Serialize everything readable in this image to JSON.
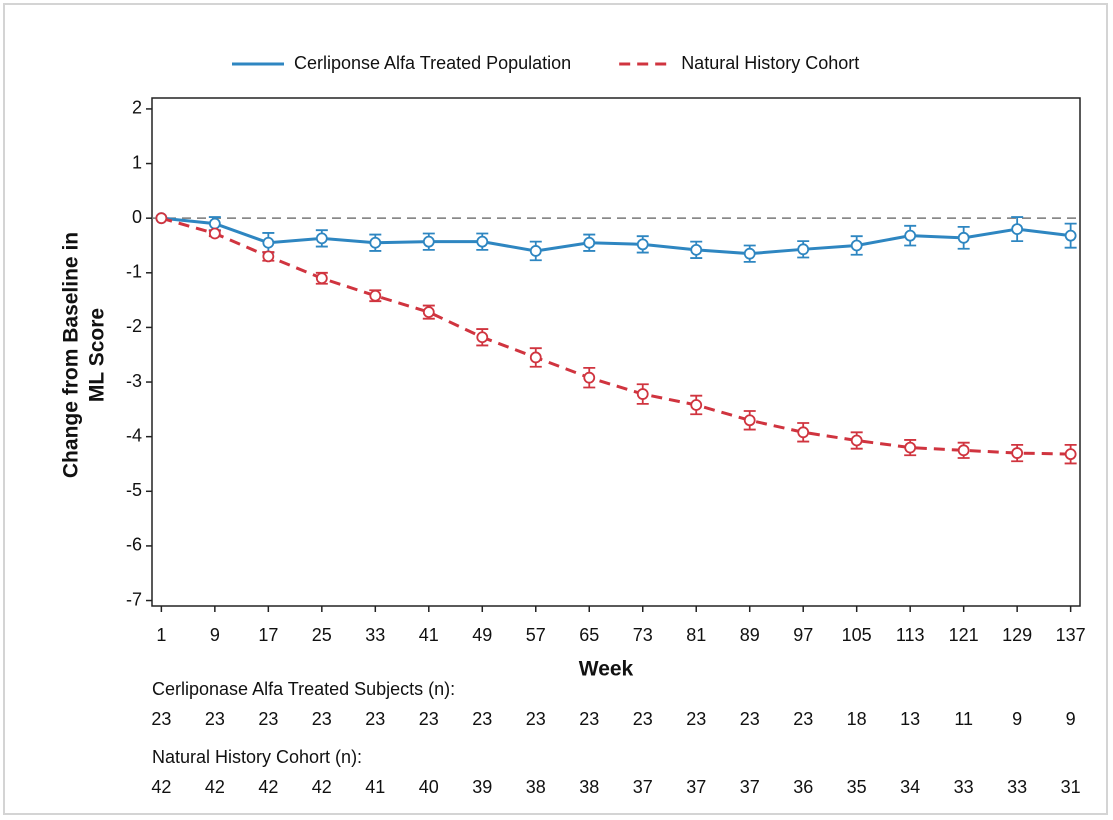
{
  "chart_data": {
    "type": "line",
    "x_label": "Week",
    "y_label": [
      "Change from Baseline in",
      "ML Score"
    ],
    "x": [
      1,
      9,
      17,
      25,
      33,
      41,
      49,
      57,
      65,
      73,
      81,
      89,
      97,
      105,
      113,
      121,
      129,
      137
    ],
    "xlim": [
      -0.4,
      138.4
    ],
    "xticks": [
      1,
      9,
      17,
      25,
      33,
      41,
      49,
      57,
      65,
      73,
      81,
      89,
      97,
      105,
      113,
      121,
      129,
      137
    ],
    "ylim": [
      -7.1,
      2.2
    ],
    "yticks": [
      2,
      1,
      0,
      -1,
      -2,
      -3,
      -4,
      -5,
      -6,
      -7
    ],
    "reference_line": 0,
    "legend": "top",
    "series": [
      {
        "name": "Cerliponse Alfa Treated Population",
        "color": "#2e86c1",
        "dash": false,
        "values": [
          0,
          -0.1,
          -0.45,
          -0.37,
          -0.45,
          -0.43,
          -0.43,
          -0.6,
          -0.45,
          -0.48,
          -0.58,
          -0.65,
          -0.57,
          -0.5,
          -0.32,
          -0.36,
          -0.2,
          -0.32
        ],
        "errors": [
          0,
          0.12,
          0.18,
          0.15,
          0.15,
          0.15,
          0.15,
          0.17,
          0.15,
          0.15,
          0.15,
          0.15,
          0.15,
          0.17,
          0.18,
          0.2,
          0.22,
          0.22
        ]
      },
      {
        "name": "Natural History Cohort",
        "color": "#d0343f",
        "dash": true,
        "values": [
          0,
          -0.28,
          -0.7,
          -1.1,
          -1.42,
          -1.72,
          -2.18,
          -2.55,
          -2.92,
          -3.22,
          -3.42,
          -3.7,
          -3.92,
          -4.07,
          -4.2,
          -4.25,
          -4.3,
          -4.32
        ],
        "errors": [
          0,
          0.05,
          0.08,
          0.1,
          0.1,
          0.12,
          0.15,
          0.17,
          0.18,
          0.18,
          0.17,
          0.17,
          0.17,
          0.15,
          0.14,
          0.14,
          0.15,
          0.17
        ]
      }
    ],
    "at_risk": [
      {
        "label": "Cerliponase Alfa Treated Subjects (n):",
        "values": [
          23,
          23,
          23,
          23,
          23,
          23,
          23,
          23,
          23,
          23,
          23,
          23,
          23,
          18,
          13,
          11,
          9,
          9
        ]
      },
      {
        "label": "Natural History Cohort (n):",
        "values": [
          42,
          42,
          42,
          42,
          41,
          40,
          39,
          38,
          38,
          37,
          37,
          37,
          36,
          35,
          34,
          33,
          33,
          31
        ]
      }
    ]
  }
}
